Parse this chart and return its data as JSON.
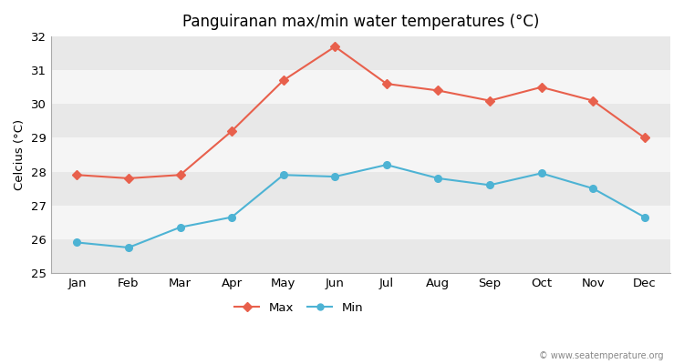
{
  "title": "Panguiranan max/min water temperatures (°C)",
  "ylabel": "Celcius (°C)",
  "months": [
    "Jan",
    "Feb",
    "Mar",
    "Apr",
    "May",
    "Jun",
    "Jul",
    "Aug",
    "Sep",
    "Oct",
    "Nov",
    "Dec"
  ],
  "max_temps": [
    27.9,
    27.8,
    27.9,
    29.2,
    30.7,
    31.7,
    30.6,
    30.4,
    30.1,
    30.5,
    30.1,
    29.0
  ],
  "min_temps": [
    25.9,
    25.75,
    26.35,
    26.65,
    27.9,
    27.85,
    28.2,
    27.8,
    27.6,
    27.95,
    27.5,
    26.65
  ],
  "max_color": "#e8604c",
  "min_color": "#4db3d4",
  "fig_bg_color": "#ffffff",
  "band_colors": [
    "#e8e8e8",
    "#f5f5f5"
  ],
  "ylim": [
    25,
    32
  ],
  "yticks": [
    25,
    26,
    27,
    28,
    29,
    30,
    31,
    32
  ],
  "spine_color": "#aaaaaa",
  "watermark": "© www.seatemperature.org",
  "legend_max": "Max",
  "legend_min": "Min"
}
